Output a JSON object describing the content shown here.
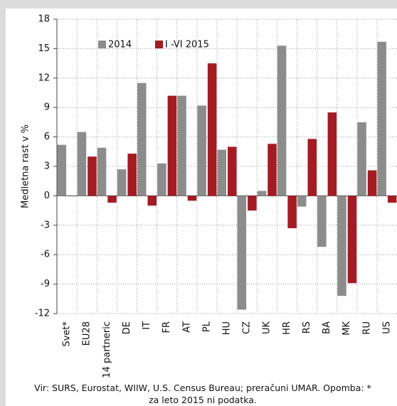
{
  "chart_data": {
    "type": "bar",
    "y_label": "Medletna rast v %",
    "note": "Vir: SURS, Eurostat, WIIW, U.S. Census Bureau; preračuni UMAR. Opomba: * za leto 2015 ni podatka.",
    "categories": [
      "Svet*",
      "EU28",
      "14 partneric",
      "DE",
      "IT",
      "FR",
      "AT",
      "PL",
      "HU",
      "CZ",
      "UK",
      "HR",
      "RS",
      "BA",
      "MK",
      "RU",
      "US"
    ],
    "series": [
      {
        "name": "2014",
        "color": "#8c8c8c",
        "values": [
          5.2,
          6.5,
          4.9,
          2.7,
          11.5,
          3.3,
          10.2,
          9.2,
          4.7,
          -11.6,
          0.5,
          15.3,
          -1.1,
          -5.2,
          -10.2,
          7.5,
          15.7
        ]
      },
      {
        "name": "I -VI 2015",
        "color": "#a31c24",
        "values": [
          null,
          4.0,
          -0.7,
          4.3,
          -1.0,
          10.2,
          -0.5,
          13.5,
          5.0,
          -1.5,
          5.3,
          -3.3,
          5.8,
          8.5,
          -8.9,
          2.6,
          -0.7
        ]
      }
    ],
    "ylim": [
      -12,
      18
    ],
    "yticks": [
      -12,
      -9,
      -6,
      -3,
      0,
      3,
      6,
      9,
      12,
      15,
      18
    ],
    "grid": true
  }
}
